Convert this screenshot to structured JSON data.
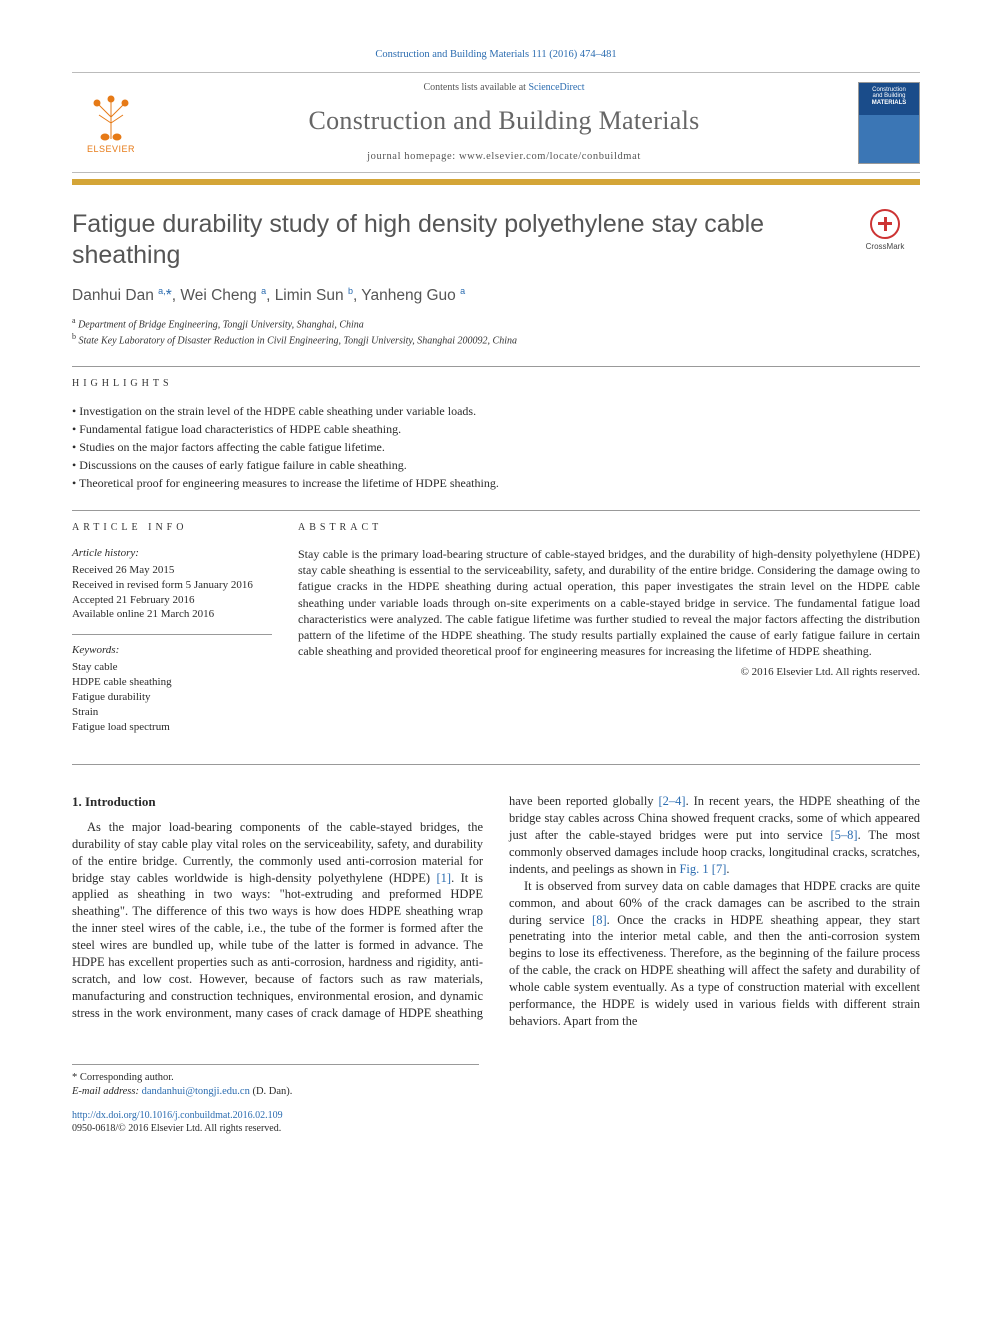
{
  "citation": "Construction and Building Materials 111 (2016) 474–481",
  "contents_prefix": "Contents lists available at ",
  "sciencedirect": "ScienceDirect",
  "journal_name": "Construction and Building Materials",
  "homepage_label": "journal homepage: ",
  "homepage_url": "www.elsevier.com/locate/conbuildmat",
  "elsevier_label": "ELSEVIER",
  "cover_line1": "Construction",
  "cover_line2": "and Building",
  "cover_line3": "MATERIALS",
  "crossmark_label": "CrossMark",
  "article_title": "Fatigue durability study of high density polyethylene stay cable sheathing",
  "authors_html": "Danhui Dan <sup>a,</sup><span class='corr-star'>*</span>, Wei Cheng <sup>a</sup>, Limin Sun <sup>b</sup>, Yanheng Guo <sup>a</sup>",
  "affiliations": {
    "a": "Department of Bridge Engineering, Tongji University, Shanghai, China",
    "b": "State Key Laboratory of Disaster Reduction in Civil Engineering, Tongji University, Shanghai 200092, China"
  },
  "labels": {
    "highlights": "highlights",
    "article_info": "article info",
    "abstract": "abstract",
    "article_history": "Article history:",
    "keywords": "Keywords:"
  },
  "highlights": [
    "Investigation on the strain level of the HDPE cable sheathing under variable loads.",
    "Fundamental fatigue load characteristics of HDPE cable sheathing.",
    "Studies on the major factors affecting the cable fatigue lifetime.",
    "Discussions on the causes of early fatigue failure in cable sheathing.",
    "Theoretical proof for engineering measures to increase the lifetime of HDPE sheathing."
  ],
  "history": {
    "received": "Received 26 May 2015",
    "revised": "Received in revised form 5 January 2016",
    "accepted": "Accepted 21 February 2016",
    "online": "Available online 21 March 2016"
  },
  "keywords": [
    "Stay cable",
    "HDPE cable sheathing",
    "Fatigue durability",
    "Strain",
    "Fatigue load spectrum"
  ],
  "abstract_text": "Stay cable is the primary load-bearing structure of cable-stayed bridges, and the durability of high-density polyethylene (HDPE) stay cable sheathing is essential to the serviceability, safety, and durability of the entire bridge. Considering the damage owing to fatigue cracks in the HDPE sheathing during actual operation, this paper investigates the strain level on the HDPE cable sheathing under variable loads through on-site experiments on a cable-stayed bridge in service. The fundamental fatigue load characteristics were analyzed. The cable fatigue lifetime was further studied to reveal the major factors affecting the distribution pattern of the lifetime of the HDPE sheathing. The study results partially explained the cause of early fatigue failure in certain cable sheathing and provided theoretical proof for engineering measures for increasing the lifetime of HDPE sheathing.",
  "copyright": "© 2016 Elsevier Ltd. All rights reserved.",
  "intro_heading": "1. Introduction",
  "intro_p1": "As the major load-bearing components of the cable-stayed bridges, the durability of stay cable play vital roles on the serviceability, safety, and durability of the entire bridge. Currently, the commonly used anti-corrosion material for bridge stay cables worldwide is high-density polyethylene (HDPE) [1]. It is applied as sheathing in two ways: \"hot-extruding and preformed HDPE sheathing\". The difference of this two ways is how does HDPE sheathing wrap the inner steel wires of the cable, i.e., the tube of the former is formed after the steel wires are bundled up, while tube of the latter is formed in advance. The HDPE has excellent properties such as anti-corrosion, hardness and rigidity, anti-scratch, and low cost. However, because of factors such as raw materials, manufacturing and construction techniques, environmental erosion, and dynamic stress in the work environment, many cases of crack damage of HDPE sheathing have been reported globally [2–4]. In recent years, the HDPE sheathing of the bridge stay cables across China showed frequent cracks, some of which appeared just after the cable-stayed bridges were put into service [5–8]. The most commonly observed damages include hoop cracks, longitudinal cracks, scratches, indents, and peelings as shown in Fig. 1 [7].",
  "intro_p2": "It is observed from survey data on cable damages that HDPE cracks are quite common, and about 60% of the crack damages can be ascribed to the strain during service [8]. Once the cracks in HDPE sheathing appear, they start penetrating into the interior metal cable, and then the anti-corrosion system begins to lose its effectiveness. Therefore, as the beginning of the failure process of the cable, the crack on HDPE sheathing will affect the safety and durability of whole cable system eventually. As a type of construction material with excellent performance, the HDPE is widely used in various fields with different strain behaviors. Apart from the",
  "footnote": {
    "corr": "* Corresponding author.",
    "email_label": "E-mail address: ",
    "email": "dandanhui@tongji.edu.cn",
    "email_suffix": " (D. Dan)."
  },
  "doi": {
    "url": "http://dx.doi.org/10.1016/j.conbuildmat.2016.02.109",
    "issn_line": "0950-0618/© 2016 Elsevier Ltd. All rights reserved."
  },
  "colors": {
    "link": "#2b6cb0",
    "gold": "#d4a537",
    "elsevier": "#e67a17",
    "title_gray": "#555555",
    "rule": "#999999"
  },
  "typography": {
    "title_pt": 25,
    "journal_pt": 26,
    "body_pt": 12.5,
    "abstract_pt": 12,
    "info_pt": 11,
    "affil_pt": 10
  }
}
